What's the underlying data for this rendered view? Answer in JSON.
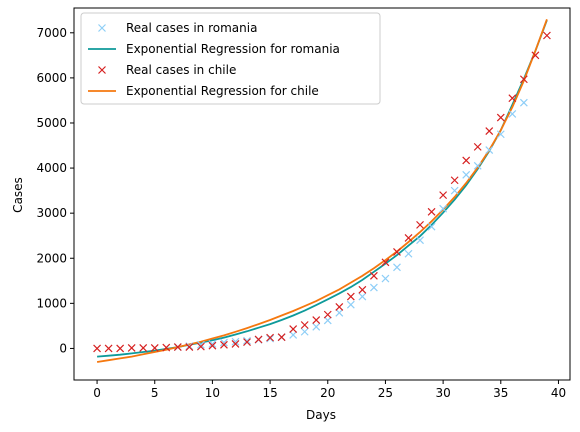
{
  "chart_data": {
    "type": "line",
    "xlabel": "Days",
    "ylabel": "Cases",
    "xlim": [
      -2,
      41
    ],
    "ylim": [
      -700,
      7550
    ],
    "xticks": [
      0,
      5,
      10,
      15,
      20,
      25,
      30,
      35,
      40
    ],
    "yticks": [
      0,
      1000,
      2000,
      3000,
      4000,
      5000,
      6000,
      7000
    ],
    "grid": false,
    "legend_position": "top-left",
    "colors": {
      "romania_cases": "#8ecef7",
      "romania_fit": "#0e9a9a",
      "chile_cases": "#d62020",
      "chile_fit": "#f5780f"
    },
    "series": [
      {
        "name": "Real cases in romania",
        "kind": "scatter",
        "marker": "x",
        "x": [
          7,
          8,
          9,
          10,
          11,
          12,
          13,
          14,
          15,
          16,
          17,
          18,
          19,
          20,
          21,
          22,
          23,
          24,
          25,
          26,
          27,
          28,
          29,
          30,
          31,
          32,
          33,
          34,
          35,
          36,
          37
        ],
        "y": [
          30,
          50,
          80,
          100,
          130,
          150,
          170,
          190,
          220,
          250,
          300,
          370,
          480,
          620,
          790,
          970,
          1150,
          1350,
          1550,
          1800,
          2100,
          2400,
          2700,
          3100,
          3500,
          3850,
          4050,
          4400,
          4750,
          5200,
          5450
        ]
      },
      {
        "name": "Exponential Regression for romania",
        "kind": "line",
        "x": [
          0,
          1,
          2,
          3,
          4,
          5,
          6,
          7,
          8,
          9,
          10,
          11,
          12,
          13,
          14,
          15,
          16,
          17,
          18,
          19,
          20,
          21,
          22,
          23,
          24,
          25,
          26,
          27,
          28,
          29,
          30,
          31,
          32,
          33,
          34,
          35,
          36,
          37,
          38,
          39
        ],
        "y": [
          -180,
          -160,
          -140,
          -110,
          -80,
          -50,
          -10,
          30,
          80,
          130,
          180,
          240,
          310,
          380,
          460,
          540,
          630,
          730,
          840,
          960,
          1090,
          1220,
          1360,
          1520,
          1700,
          1880,
          2070,
          2280,
          2490,
          2740,
          3010,
          3300,
          3620,
          3980,
          4380,
          4840,
          5400,
          5980,
          6600,
          7280
        ]
      },
      {
        "name": "Real cases in chile",
        "kind": "scatter",
        "marker": "x",
        "x": [
          0,
          1,
          2,
          3,
          4,
          5,
          6,
          7,
          8,
          9,
          10,
          11,
          12,
          13,
          14,
          15,
          16,
          17,
          18,
          19,
          20,
          21,
          22,
          23,
          24,
          25,
          26,
          27,
          28,
          29,
          30,
          31,
          32,
          33,
          34,
          35,
          36,
          37,
          38,
          39
        ],
        "y": [
          0,
          0,
          0,
          10,
          10,
          10,
          20,
          30,
          30,
          40,
          60,
          80,
          100,
          140,
          200,
          240,
          250,
          430,
          520,
          630,
          750,
          920,
          1150,
          1300,
          1610,
          1910,
          2140,
          2450,
          2740,
          3030,
          3400,
          3730,
          4170,
          4470,
          4820,
          5120,
          5550,
          5970,
          6500,
          6940
        ]
      },
      {
        "name": "Exponential Regression for chile",
        "kind": "line",
        "x": [
          0,
          1,
          2,
          3,
          4,
          5,
          6,
          7,
          8,
          9,
          10,
          11,
          12,
          13,
          14,
          15,
          16,
          17,
          18,
          19,
          20,
          21,
          22,
          23,
          24,
          25,
          26,
          27,
          28,
          29,
          30,
          31,
          32,
          33,
          34,
          35,
          36,
          37,
          38,
          39
        ],
        "y": [
          -300,
          -260,
          -220,
          -180,
          -130,
          -80,
          -30,
          30,
          90,
          150,
          220,
          290,
          370,
          450,
          540,
          630,
          730,
          830,
          940,
          1050,
          1180,
          1310,
          1460,
          1610,
          1780,
          1960,
          2150,
          2360,
          2580,
          2820,
          3080,
          3360,
          3670,
          4010,
          4400,
          4840,
          5350,
          5940,
          6600,
          7300
        ]
      }
    ]
  }
}
